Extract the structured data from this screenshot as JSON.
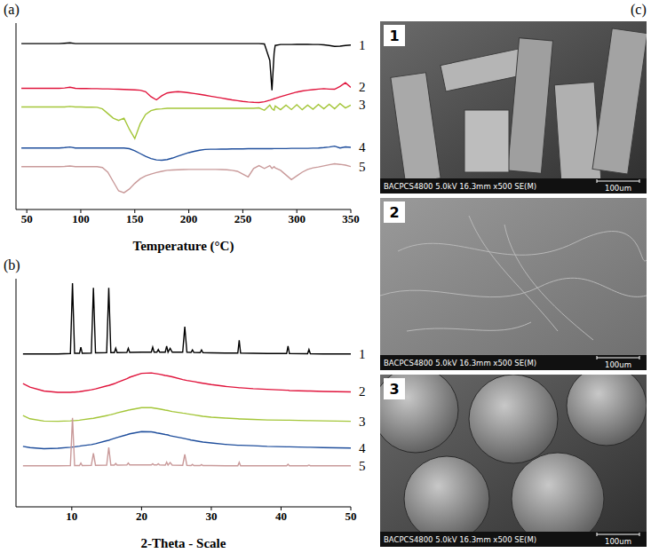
{
  "chart_data": [
    {
      "type": "line",
      "panel": "(a)",
      "x_label": "Temperature (°C)",
      "x": [
        45,
        50,
        55,
        60,
        65,
        70,
        75,
        80,
        85,
        90,
        95,
        100,
        105,
        110,
        115,
        120,
        125,
        130,
        135,
        140,
        145,
        150,
        155,
        160,
        165,
        170,
        175,
        180,
        185,
        190,
        195,
        200,
        205,
        210,
        215,
        220,
        225,
        230,
        235,
        240,
        245,
        250,
        255,
        260,
        265,
        270,
        275,
        277,
        279,
        280,
        285,
        290,
        295,
        300,
        305,
        310,
        315,
        320,
        325,
        330,
        335,
        340,
        345,
        350
      ],
      "xlim": [
        40,
        350
      ],
      "xticks": [
        50,
        100,
        150,
        200,
        250,
        300,
        350
      ],
      "ylim": [
        0,
        100
      ],
      "grid": false,
      "tick_labels": "x",
      "series": [
        {
          "name": "1",
          "color": "#000000",
          "values": [
            89,
            89,
            89,
            89,
            89,
            89,
            89,
            89,
            89.2,
            89.4,
            89,
            89,
            89,
            89,
            89,
            89,
            89,
            89,
            89,
            89,
            89,
            89,
            89,
            89,
            89,
            89,
            89,
            89,
            89,
            89,
            89,
            89,
            89,
            89,
            89,
            89,
            89,
            89,
            89,
            89,
            89,
            89,
            89,
            89,
            89,
            88.8,
            80,
            64,
            84,
            88,
            88.5,
            88.5,
            88.5,
            88.6,
            88.6,
            88.6,
            88.5,
            88.5,
            88.3,
            88,
            87.5,
            87.6,
            88,
            88.2
          ]
        },
        {
          "name": "2",
          "color": "#e0143c",
          "values": [
            65,
            65,
            65,
            65,
            65,
            65,
            65,
            65,
            65.2,
            65.6,
            65,
            64.9,
            64.9,
            64.8,
            64.8,
            64.7,
            64.7,
            64.6,
            64.5,
            64.4,
            64.3,
            64.2,
            64,
            63.2,
            60.5,
            58.8,
            61,
            62.5,
            63,
            63.2,
            63,
            62.6,
            62.2,
            61.8,
            61.3,
            60.8,
            60.3,
            59.8,
            59.3,
            58.8,
            58.4,
            58,
            57.7,
            57.5,
            57.4,
            57.8,
            58.6,
            59,
            59.4,
            59.6,
            60.5,
            61.4,
            62.2,
            63,
            63.6,
            64,
            64.3,
            64.6,
            64.8,
            64.6,
            64.5,
            66,
            68,
            65.5
          ]
        },
        {
          "name": "3",
          "color": "#a4c639",
          "values": [
            55,
            55,
            55,
            55,
            55,
            55,
            55,
            55,
            55,
            55.3,
            55,
            55,
            54.9,
            54.9,
            54.8,
            54,
            51.5,
            49,
            47.8,
            49,
            43,
            38,
            46,
            51,
            53,
            53.8,
            54,
            54.3,
            54.3,
            54.3,
            54.3,
            54.3,
            54.3,
            54.3,
            54.3,
            54.3,
            54.3,
            54.3,
            54.3,
            54.3,
            54.3,
            54.3,
            54.3,
            54.3,
            54.5,
            53.2,
            56,
            54,
            53.3,
            55.5,
            53.5,
            56,
            53.6,
            56.2,
            53.5,
            56,
            53.8,
            56.3,
            54,
            56.5,
            54,
            56.8,
            54.5,
            56
          ]
        },
        {
          "name": "4",
          "color": "#1f4e9c",
          "values": [
            33,
            33,
            33,
            33,
            33,
            33,
            33,
            33,
            33.2,
            33.5,
            33,
            33,
            33,
            33,
            33,
            33,
            33,
            33,
            33,
            33,
            32.6,
            31.5,
            30,
            28.5,
            27.3,
            26.6,
            26.4,
            26.8,
            27.6,
            28.6,
            29.6,
            30.5,
            31.2,
            31.8,
            32.2,
            32.3,
            32.3,
            32.4,
            32.4,
            32.5,
            32.5,
            32.5,
            32.6,
            32.6,
            32.6,
            32.6,
            32.6,
            32.6,
            32.7,
            32.7,
            32.7,
            32.7,
            32.8,
            32.8,
            32.8,
            32.8,
            32.9,
            33,
            33.2,
            33.5,
            34,
            33,
            33.6,
            33.3
          ]
        },
        {
          "name": "5",
          "color": "#c99a9a",
          "values": [
            23,
            23,
            23,
            23,
            23,
            23,
            23,
            23,
            23.1,
            23.3,
            23,
            23,
            23,
            23,
            23,
            22.5,
            20,
            15,
            10,
            9,
            11,
            14,
            16.5,
            18,
            19,
            19.8,
            20.5,
            21,
            21.2,
            21.3,
            21.4,
            21.5,
            21.5,
            21.5,
            21.5,
            21.5,
            21.5,
            21.4,
            21.3,
            21,
            20.5,
            19,
            17.5,
            22,
            23.5,
            22,
            23.5,
            22,
            23,
            22.3,
            21,
            18.5,
            16,
            18,
            20,
            21.5,
            22.3,
            22.8,
            23.4,
            24,
            24.5,
            24.2,
            23.8,
            23
          ]
        }
      ]
    },
    {
      "type": "line",
      "panel": "(b)",
      "x_label": "2-Theta - Scale",
      "x": [
        3,
        4,
        6,
        8,
        9.8,
        10.1,
        10.4,
        11.1,
        11.3,
        11.5,
        12.8,
        13.1,
        13.4,
        15,
        15.3,
        15.6,
        16.1,
        16.3,
        16.5,
        17.9,
        18.1,
        18.3,
        20,
        21.4,
        21.6,
        21.8,
        22.2,
        22.4,
        22.6,
        23.4,
        23.6,
        23.8,
        24.1,
        24.4,
        25.9,
        26.2,
        26.5,
        27.1,
        27.3,
        27.5,
        28.4,
        28.6,
        28.8,
        30,
        32,
        33.8,
        34,
        34.2,
        36,
        38,
        40.8,
        41,
        41.2,
        43.8,
        44,
        44.2,
        46,
        48,
        50
      ],
      "xlim": [
        2,
        50
      ],
      "xticks": [
        10,
        20,
        30,
        40,
        50
      ],
      "ylim": [
        0,
        100
      ],
      "grid": false,
      "tick_labels": "x",
      "series": [
        {
          "name": "1",
          "color": "#000000",
          "values": [
            67,
            67,
            67,
            67,
            67.2,
            98,
            67.3,
            67.3,
            70,
            67.3,
            67.4,
            96,
            67.5,
            67.6,
            96,
            67.6,
            67.6,
            69.5,
            67.6,
            67.7,
            69.5,
            67.7,
            67.8,
            67.8,
            70,
            67.8,
            67.8,
            69,
            67.8,
            67.8,
            70.5,
            67.8,
            69.5,
            67.8,
            67.8,
            79,
            67.8,
            67.7,
            68.8,
            67.7,
            67.6,
            68.8,
            67.6,
            67.5,
            67.4,
            67.4,
            73,
            67.4,
            67.3,
            67.2,
            67.2,
            70.5,
            67.2,
            67.1,
            69,
            67.1,
            67,
            67,
            67
          ]
        },
        {
          "name": "2",
          "color": "#e0143c",
          "values": [
            54,
            52.5,
            50.8,
            50.2,
            50.2,
            50.3,
            50.3,
            50.5,
            50.6,
            50.7,
            51.3,
            51.5,
            51.7,
            53,
            53.2,
            53.5,
            54,
            54.2,
            54.5,
            56.2,
            56.5,
            56.8,
            58.5,
            58.7,
            58.6,
            58.5,
            58.3,
            58.2,
            58.1,
            57.6,
            57.5,
            57.4,
            57.2,
            57,
            55.8,
            55.6,
            55.4,
            55.1,
            55,
            54.9,
            54.4,
            54.3,
            54.2,
            53.6,
            52.8,
            52.3,
            52.2,
            52.2,
            51.8,
            51.5,
            51.1,
            51.1,
            51,
            50.8,
            50.8,
            50.8,
            50.6,
            50.5,
            50.4
          ]
        },
        {
          "name": "3",
          "color": "#a4c639",
          "values": [
            40,
            38.6,
            37.6,
            37.5,
            37.7,
            37.8,
            37.8,
            38,
            38.1,
            38.2,
            38.7,
            38.8,
            39,
            40,
            40.2,
            40.4,
            40.8,
            41,
            41.2,
            42.2,
            42.4,
            42.5,
            43.5,
            43.5,
            43.4,
            43.3,
            43.1,
            43,
            42.9,
            42.4,
            42.3,
            42.2,
            42,
            41.8,
            41.1,
            41,
            40.8,
            40.5,
            40.4,
            40.3,
            39.9,
            39.8,
            39.7,
            39.3,
            38.9,
            38.6,
            38.5,
            38.5,
            38.3,
            38.1,
            38,
            38,
            38,
            37.8,
            37.8,
            37.8,
            37.7,
            37.6,
            37.5
          ]
        },
        {
          "name": "4",
          "color": "#1f4e9c",
          "values": [
            26.5,
            26,
            25.5,
            25.7,
            26.1,
            26.2,
            26.3,
            26.6,
            26.7,
            26.8,
            27.3,
            27.5,
            27.7,
            29,
            29.2,
            29.5,
            30,
            30.2,
            30.4,
            31.6,
            31.8,
            32,
            33,
            32.9,
            32.8,
            32.7,
            32.4,
            32.3,
            32.2,
            31.7,
            31.6,
            31.5,
            31.2,
            31,
            30.1,
            29.9,
            29.7,
            29.3,
            29.2,
            29.1,
            28.6,
            28.5,
            28.4,
            28,
            27.4,
            27,
            27,
            27,
            26.8,
            26.5,
            26.3,
            26.3,
            26.3,
            26.1,
            26.1,
            26.1,
            26,
            25.9,
            25.8
          ]
        },
        {
          "name": "5",
          "color": "#c99a9a",
          "values": [
            18,
            18,
            18,
            18,
            18.1,
            39,
            18.1,
            18.1,
            19.2,
            18.1,
            18.2,
            23.5,
            18.2,
            18.3,
            26,
            18.3,
            18.3,
            19,
            18.3,
            18.4,
            19.2,
            18.4,
            18.4,
            18.4,
            18.9,
            18.4,
            18.4,
            18.9,
            18.4,
            18.3,
            19.6,
            18.3,
            19.4,
            18.3,
            18.2,
            23,
            18.2,
            18.1,
            18.6,
            18.1,
            18.1,
            18.5,
            18.1,
            18.1,
            18,
            18,
            19.5,
            18,
            18,
            18,
            18,
            18.7,
            18,
            18,
            18.3,
            18,
            18,
            18,
            18
          ]
        }
      ]
    }
  ],
  "sem": {
    "panel": "(c)",
    "images": [
      {
        "label": "1",
        "caption": "BACPCS4800 5.0kV 16.3mm x500 SE(M)",
        "scale_bar": "100um"
      },
      {
        "label": "2",
        "caption": "BACPCS4800 5.0kV 16.3mm x500 SE(M)",
        "scale_bar": "100um"
      },
      {
        "label": "3",
        "caption": "BACPCS4800 5.0kV 16.3mm x500 SE(M)",
        "scale_bar": "100um"
      }
    ]
  }
}
